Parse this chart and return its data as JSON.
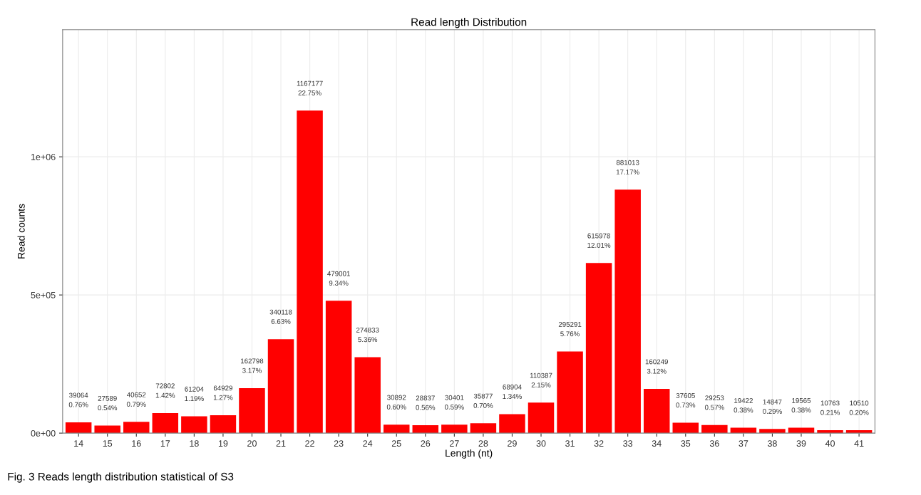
{
  "chart_data": {
    "type": "bar",
    "title": "Read length Distribution",
    "xlabel": "Length (nt)",
    "ylabel": "Read counts",
    "categories": [
      "14",
      "15",
      "16",
      "17",
      "18",
      "19",
      "20",
      "21",
      "22",
      "23",
      "24",
      "25",
      "26",
      "27",
      "28",
      "29",
      "30",
      "31",
      "32",
      "33",
      "34",
      "35",
      "36",
      "37",
      "38",
      "39",
      "40",
      "41"
    ],
    "values": [
      39064,
      27589,
      40652,
      72802,
      61204,
      64929,
      162798,
      340118,
      1167177,
      479001,
      274833,
      30892,
      28837,
      30401,
      35877,
      68904,
      110387,
      295291,
      615978,
      881013,
      160249,
      37605,
      29253,
      19422,
      14847,
      19565,
      10763,
      10510
    ],
    "value_labels": [
      "39064\n0.76%",
      "27589\n0.54%",
      "40652\n0.79%",
      "72802\n1.42%",
      "61204\n1.19%",
      "64929\n1.27%",
      "162798\n3.17%",
      "340118\n6.63%",
      "1167177\n22.75%",
      "479001\n9.34%",
      "274833\n5.36%",
      "30892\n0.60%",
      "28837\n0.56%",
      "30401\n0.59%",
      "35877\n0.70%",
      "68904\n1.34%",
      "110387\n2.15%",
      "295291\n5.76%",
      "615978\n12.01%",
      "881013\n17.17%",
      "160249\n3.12%",
      "37605\n0.73%",
      "29253\n0.57%",
      "19422\n0.38%",
      "14847\n0.29%",
      "19565\n0.38%",
      "10763\n0.21%",
      "10510\n0.20%"
    ],
    "color": "#ff0000",
    "ylim": [
      0,
      1460000
    ],
    "yticks": [
      {
        "value": 0,
        "label": "0e+00"
      },
      {
        "value": 500000,
        "label": "5e+05"
      },
      {
        "value": 1000000,
        "label": "1e+06"
      }
    ],
    "grid": true,
    "annotations": [
      "Fig. 3 Reads length distribution statistical of S3"
    ]
  }
}
